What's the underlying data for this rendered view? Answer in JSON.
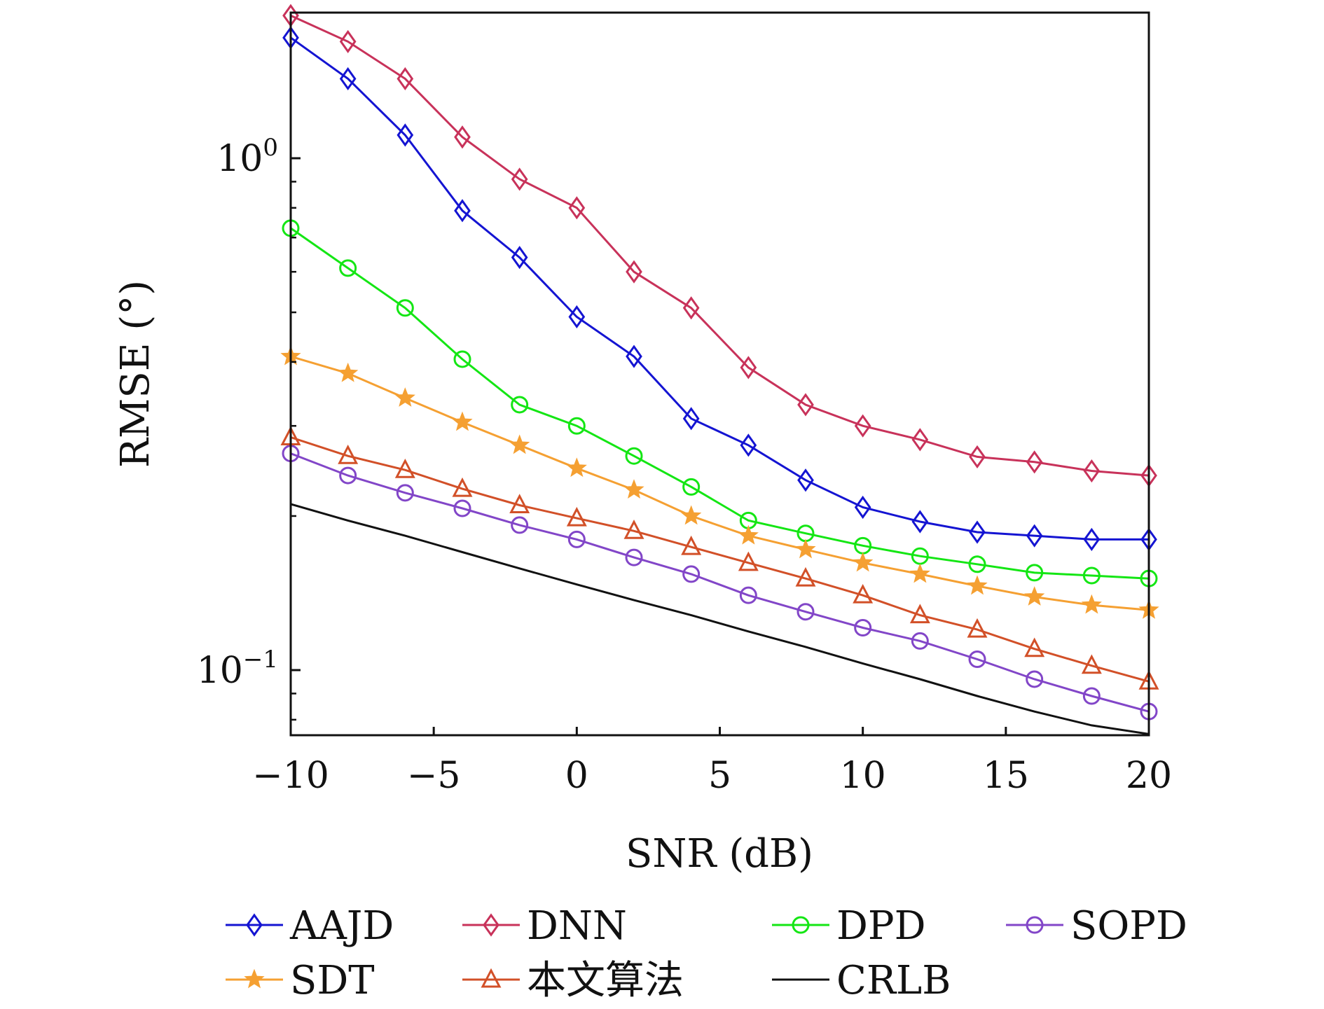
{
  "chart_data": {
    "type": "line",
    "xlabel": "SNR (dB)",
    "ylabel": "RMSE (°)",
    "xlim": [
      -10,
      20
    ],
    "ylim": [
      0.075,
      1.95
    ],
    "yscale": "log",
    "grid": false,
    "legend_position": "bottom",
    "x_ticks": [
      -10,
      -5,
      0,
      5,
      10,
      15,
      20
    ],
    "x_tick_labels": [
      "−10",
      "−5",
      "0",
      "5",
      "10",
      "15",
      "20"
    ],
    "y_ticks": [
      1,
      0.1
    ],
    "y_tick_labels": [
      {
        "base": "10",
        "exp": "0"
      },
      {
        "base": "10",
        "exp": "−1"
      }
    ],
    "x": [
      -10,
      -8,
      -6,
      -4,
      -2,
      0,
      2,
      4,
      6,
      8,
      10,
      12,
      14,
      16,
      18,
      20
    ],
    "series": [
      {
        "name": "AAJD",
        "color": "#1414d2",
        "marker": "diamond",
        "values": [
          1.72,
          1.43,
          1.11,
          0.79,
          0.64,
          0.49,
          0.41,
          0.31,
          0.275,
          0.235,
          0.208,
          0.195,
          0.186,
          0.183,
          0.18,
          0.18
        ]
      },
      {
        "name": "DNN",
        "color": "#c8325a",
        "marker": "diamond",
        "values": [
          1.9,
          1.69,
          1.43,
          1.1,
          0.91,
          0.8,
          0.6,
          0.51,
          0.39,
          0.33,
          0.3,
          0.282,
          0.261,
          0.255,
          0.245,
          0.24
        ]
      },
      {
        "name": "DPD",
        "color": "#14e614",
        "marker": "circle",
        "values": [
          0.73,
          0.61,
          0.51,
          0.405,
          0.33,
          0.3,
          0.262,
          0.228,
          0.196,
          0.185,
          0.175,
          0.167,
          0.161,
          0.155,
          0.153,
          0.151
        ]
      },
      {
        "name": "SOPD",
        "color": "#8246c8",
        "marker": "circle",
        "values": [
          0.265,
          0.24,
          0.222,
          0.207,
          0.192,
          0.18,
          0.166,
          0.154,
          0.14,
          0.13,
          0.121,
          0.114,
          0.105,
          0.096,
          0.089,
          0.083
        ]
      },
      {
        "name": "SDT",
        "color": "#f5a032",
        "marker": "star",
        "values": [
          0.41,
          0.38,
          0.34,
          0.305,
          0.275,
          0.248,
          0.225,
          0.2,
          0.183,
          0.172,
          0.162,
          0.154,
          0.146,
          0.139,
          0.134,
          0.131
        ]
      },
      {
        "name": "本文算法",
        "color": "#d25028",
        "marker": "triangle",
        "values": [
          0.285,
          0.262,
          0.246,
          0.226,
          0.21,
          0.198,
          0.187,
          0.174,
          0.162,
          0.151,
          0.14,
          0.128,
          0.12,
          0.11,
          0.102,
          0.095
        ]
      },
      {
        "name": "CRLB",
        "color": "#111111",
        "marker": "none",
        "values": [
          0.211,
          0.196,
          0.183,
          0.17,
          0.158,
          0.147,
          0.137,
          0.128,
          0.119,
          0.111,
          0.103,
          0.096,
          0.089,
          0.083,
          0.078,
          0.075
        ]
      }
    ],
    "legend": [
      [
        "AAJD",
        "DNN",
        "DPD",
        "SOPD"
      ],
      [
        "SDT",
        "本文算法",
        "CRLB"
      ]
    ]
  }
}
